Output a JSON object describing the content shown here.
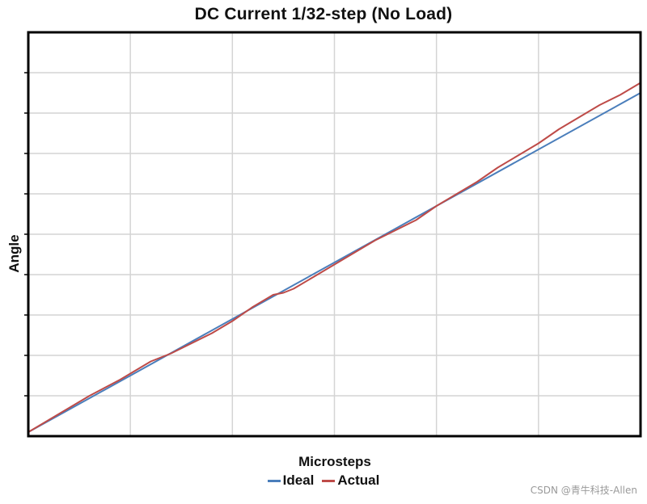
{
  "chart_data": {
    "type": "line",
    "title": "DC Current 1/32-step (No Load)",
    "xlabel": "Microsteps",
    "ylabel": "Angle",
    "xlim": [
      0,
      6
    ],
    "ylim": [
      0,
      10
    ],
    "grid": true,
    "legend_position": "bottom-center",
    "series": [
      {
        "name": "Ideal",
        "color": "#4a7ebb",
        "x": [
          0,
          6
        ],
        "y": [
          0.1,
          8.5
        ]
      },
      {
        "name": "Actual",
        "color": "#be4b48",
        "x": [
          0,
          0.3,
          0.6,
          0.9,
          1.0,
          1.2,
          1.4,
          1.6,
          1.8,
          2.0,
          2.2,
          2.4,
          2.5,
          2.6,
          2.8,
          3.0,
          3.2,
          3.4,
          3.6,
          3.8,
          4.0,
          4.2,
          4.4,
          4.6,
          4.8,
          5.0,
          5.2,
          5.4,
          5.6,
          5.8,
          6.0
        ],
        "y": [
          0.1,
          0.55,
          1.0,
          1.4,
          1.55,
          1.85,
          2.05,
          2.3,
          2.55,
          2.85,
          3.2,
          3.5,
          3.55,
          3.65,
          3.95,
          4.25,
          4.55,
          4.85,
          5.1,
          5.35,
          5.7,
          6.0,
          6.3,
          6.65,
          6.95,
          7.25,
          7.6,
          7.9,
          8.2,
          8.45,
          8.75
        ]
      }
    ]
  },
  "watermark": "CSDN @青牛科技-Allen"
}
